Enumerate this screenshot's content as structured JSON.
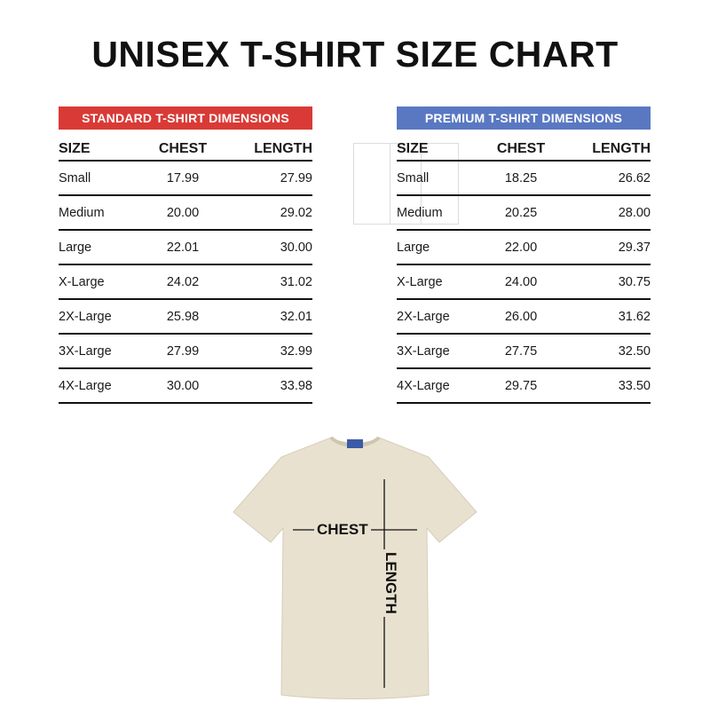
{
  "title": "UNISEX T-SHIRT SIZE CHART",
  "colors": {
    "standard_banner": "#d93a36",
    "premium_banner": "#5a78c2",
    "shirt": "#e8e1cf"
  },
  "standard": {
    "banner": "STANDARD T-SHIRT DIMENSIONS",
    "headers": [
      "SIZE",
      "CHEST",
      "LENGTH"
    ],
    "rows": [
      [
        "Small",
        "17.99",
        "27.99"
      ],
      [
        "Medium",
        "20.00",
        "29.02"
      ],
      [
        "Large",
        "22.01",
        "30.00"
      ],
      [
        "X-Large",
        "24.02",
        "31.02"
      ],
      [
        "2X-Large",
        "25.98",
        "32.01"
      ],
      [
        "3X-Large",
        "27.99",
        "32.99"
      ],
      [
        "4X-Large",
        "30.00",
        "33.98"
      ]
    ]
  },
  "premium": {
    "banner": "PREMIUM T-SHIRT DIMENSIONS",
    "headers": [
      "SIZE",
      "CHEST",
      "LENGTH"
    ],
    "rows": [
      [
        "Small",
        "18.25",
        "26.62"
      ],
      [
        "Medium",
        "20.25",
        "28.00"
      ],
      [
        "Large",
        "22.00",
        "29.37"
      ],
      [
        "X-Large",
        "24.00",
        "30.75"
      ],
      [
        "2X-Large",
        "26.00",
        "31.62"
      ],
      [
        "3X-Large",
        "27.75",
        "32.50"
      ],
      [
        "4X-Large",
        "29.75",
        "33.50"
      ]
    ]
  },
  "diagram": {
    "chest_label": "CHEST",
    "length_label": "LENGTH"
  }
}
